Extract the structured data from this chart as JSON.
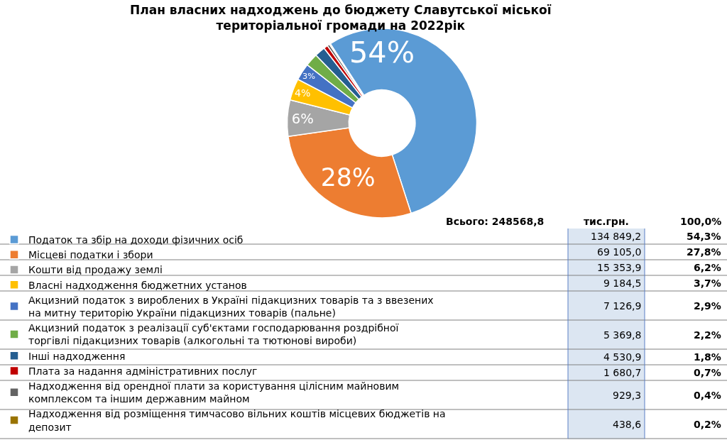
{
  "chart_data": {
    "type": "donut",
    "title": "План власних надходжень до бюджету Славутської міської територіальної громади на 2022рік",
    "categories": [
      "Податок та збір на доходи фізичних осіб",
      "Місцеві податки і збори",
      "Кошти від продажу землі",
      "Власні надходження бюджетних установ",
      "Акцизний податок з вироблених в Україні підакцизних товарів та з ввезених на митну територію України підакцизних товарів (пальне)",
      "Акцизний податок з реалізації суб'єктами господарювання роздрібної торгівлі підакцизних товарів (алкогольні та тютюнові вироби)",
      "Інші надходження",
      "Плата за надання адміністративних послуг",
      "Надходження від орендної плати за користування цілісним майновим комплексом та іншим державним майном",
      "Надходження від розміщення тимчасово вільних коштів місцевих бюджетів на депозит"
    ],
    "values": [
      54.3,
      27.8,
      6.2,
      3.7,
      2.9,
      2.2,
      1.8,
      0.7,
      0.4,
      0.2
    ],
    "colors": [
      "#5b9bd5",
      "#ed7d31",
      "#a5a5a5",
      "#ffc000",
      "#4472c4",
      "#70ad47",
      "#255e91",
      "#c00000",
      "#636363",
      "#997300"
    ],
    "value_labels": [
      "54%",
      "28%",
      "6%",
      "4%",
      "3%",
      null,
      null,
      null,
      null,
      null
    ],
    "legend": "bottom left",
    "annotations": [
      "Всього: 248568,8",
      "тис.грн.",
      "100,0%",
      "134 849,2",
      "69 105,0",
      "15 353,9",
      "9 184,5",
      "7 126,9",
      "5 369,8",
      "4 530,9",
      "1 680,7",
      "929,3",
      "438,6",
      "54,3%",
      "27,8%",
      "6,2%",
      "3,7%",
      "2,9%",
      "2,2%",
      "1,8%",
      "0,7%",
      "0,4%",
      "0,2%"
    ]
  }
}
